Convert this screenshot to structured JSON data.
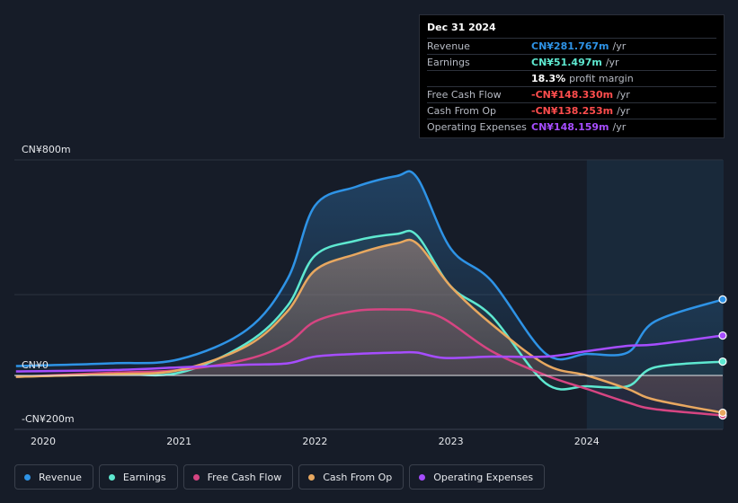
{
  "tooltip": {
    "date": "Dec 31 2024",
    "rows": [
      {
        "label": "Revenue",
        "value": "CN¥281.767m",
        "unit": "/yr",
        "color": "#2e93e6"
      },
      {
        "label": "Earnings",
        "value": "CN¥51.497m",
        "unit": "/yr",
        "color": "#5ee8d0"
      },
      {
        "label": "",
        "value": "18.3%",
        "unit": "profit margin",
        "color": "#ffffff"
      },
      {
        "label": "Free Cash Flow",
        "value": "-CN¥148.330m",
        "unit": "/yr",
        "color": "#ff4d4d"
      },
      {
        "label": "Cash From Op",
        "value": "-CN¥138.253m",
        "unit": "/yr",
        "color": "#ff4d4d"
      },
      {
        "label": "Operating Expenses",
        "value": "CN¥148.159m",
        "unit": "/yr",
        "color": "#a64dff"
      }
    ]
  },
  "legend": [
    {
      "label": "Revenue",
      "color": "#2e93e6"
    },
    {
      "label": "Earnings",
      "color": "#5ee8d0"
    },
    {
      "label": "Free Cash Flow",
      "color": "#d64582"
    },
    {
      "label": "Cash From Op",
      "color": "#e8a860"
    },
    {
      "label": "Operating Expenses",
      "color": "#a64dff"
    }
  ],
  "chart_data": {
    "type": "area",
    "y_tick_labels": [
      "CN¥800m",
      "CN¥0",
      "-CN¥200m"
    ],
    "x_tick_labels": [
      "2020",
      "2021",
      "2022",
      "2023",
      "2024"
    ],
    "ylim": [
      -200,
      800
    ],
    "xlim": [
      2019.8,
      2025.0
    ],
    "forecast_region_start": 2024.0,
    "series": [
      {
        "name": "Revenue",
        "color": "#2e93e6",
        "x": [
          2019.8,
          2020.5,
          2021.0,
          2021.5,
          2021.8,
          2022.0,
          2022.3,
          2022.6,
          2022.75,
          2023.0,
          2023.3,
          2023.7,
          2024.0,
          2024.3,
          2024.5,
          2025.0
        ],
        "y": [
          35,
          45,
          60,
          170,
          360,
          630,
          700,
          740,
          735,
          470,
          350,
          80,
          80,
          85,
          200,
          282
        ]
      },
      {
        "name": "Earnings",
        "color": "#5ee8d0",
        "x": [
          2019.8,
          2020.5,
          2021.0,
          2021.5,
          2021.8,
          2022.0,
          2022.3,
          2022.6,
          2022.75,
          2023.0,
          2023.3,
          2023.7,
          2024.0,
          2024.3,
          2024.5,
          2025.0
        ],
        "y": [
          -5,
          5,
          10,
          120,
          260,
          445,
          500,
          525,
          520,
          330,
          220,
          -30,
          -40,
          -40,
          30,
          51.5
        ]
      },
      {
        "name": "Free Cash Flow",
        "color": "#d64582",
        "x": [
          2019.8,
          2020.5,
          2021.0,
          2021.5,
          2021.8,
          2022.0,
          2022.3,
          2022.6,
          2022.75,
          2022.95,
          2023.3,
          2023.7,
          2024.0,
          2024.3,
          2024.5,
          2025.0
        ],
        "y": [
          -5,
          10,
          20,
          60,
          120,
          200,
          240,
          245,
          240,
          210,
          90,
          0,
          -50,
          -100,
          -125,
          -148.3
        ]
      },
      {
        "name": "Cash From Op",
        "color": "#e8a860",
        "x": [
          2019.8,
          2020.5,
          2021.0,
          2021.5,
          2021.8,
          2022.0,
          2022.3,
          2022.6,
          2022.75,
          2023.0,
          2023.3,
          2023.7,
          2024.0,
          2024.3,
          2024.5,
          2025.0
        ],
        "y": [
          -5,
          5,
          20,
          110,
          240,
          390,
          450,
          490,
          490,
          330,
          190,
          40,
          0,
          -50,
          -90,
          -138.3
        ]
      },
      {
        "name": "Operating Expenses",
        "color": "#a64dff",
        "x": [
          2019.8,
          2020.5,
          2021.0,
          2021.5,
          2021.8,
          2022.0,
          2022.3,
          2022.6,
          2022.75,
          2022.95,
          2023.3,
          2023.7,
          2024.0,
          2024.3,
          2024.5,
          2025.0
        ],
        "y": [
          15,
          20,
          30,
          40,
          45,
          70,
          80,
          85,
          85,
          65,
          70,
          70,
          90,
          110,
          115,
          148.2
        ]
      }
    ]
  }
}
